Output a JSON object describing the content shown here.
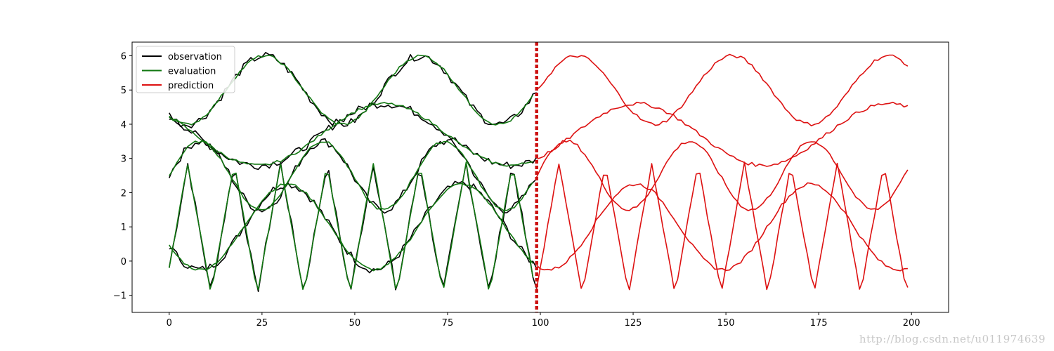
{
  "watermark": "http://blog.csdn.net/u011974639",
  "chart_data": {
    "type": "line",
    "title": "",
    "xlabel": "",
    "ylabel": "",
    "xlim": [
      -10,
      210
    ],
    "ylim": [
      -1.5,
      6.4
    ],
    "xticks": [
      0,
      25,
      50,
      75,
      100,
      125,
      150,
      175,
      200
    ],
    "yticks": [
      -1,
      0,
      1,
      2,
      3,
      4,
      5,
      6
    ],
    "grid": false,
    "legend_position": "top-left",
    "split_marker": {
      "x": 99,
      "color": "#cc1111",
      "style": "dotted"
    },
    "legend": [
      {
        "label": "observation",
        "color": "#000000"
      },
      {
        "label": "evaluation",
        "color": "#117711"
      },
      {
        "label": "prediction",
        "color": "#dd1111"
      }
    ],
    "series": [
      {
        "name": "observation",
        "color": "#000000",
        "x_range": [
          0,
          99
        ],
        "curves": [
          {
            "a": 1.0,
            "o": 0.0,
            "p": 12.5,
            "ph": 1.2
          },
          {
            "a": 1.25,
            "o": 1.0,
            "p": 47.0,
            "ph": 3.6
          },
          {
            "a": 1.0,
            "o": 2.5,
            "p": 33.0,
            "ph": 0.0
          },
          {
            "a": 0.9,
            "o": 3.7,
            "p": 68.0,
            "ph": 2.5
          },
          {
            "a": 1.0,
            "o": 5.0,
            "p": 42.0,
            "ph": 4.0
          }
        ],
        "noise": 0.12
      },
      {
        "name": "evaluation",
        "color": "#117711",
        "x_range": [
          0,
          98
        ],
        "curves": [
          {
            "a": 1.0,
            "o": 0.0,
            "p": 12.5,
            "ph": 1.2
          },
          {
            "a": 1.25,
            "o": 1.0,
            "p": 47.0,
            "ph": 3.6
          },
          {
            "a": 1.0,
            "o": 2.5,
            "p": 33.0,
            "ph": 0.0
          },
          {
            "a": 0.9,
            "o": 3.7,
            "p": 68.0,
            "ph": 2.5
          },
          {
            "a": 1.0,
            "o": 5.0,
            "p": 42.0,
            "ph": 4.0
          }
        ],
        "noise": 0.04
      },
      {
        "name": "prediction",
        "color": "#dd1111",
        "x_range": [
          99,
          199
        ],
        "curves": [
          {
            "a": 1.0,
            "o": 0.0,
            "p": 12.5,
            "ph": 1.2
          },
          {
            "a": 1.25,
            "o": 1.0,
            "p": 47.0,
            "ph": 3.6
          },
          {
            "a": 1.0,
            "o": 2.5,
            "p": 33.0,
            "ph": 0.0
          },
          {
            "a": 0.9,
            "o": 3.7,
            "p": 68.0,
            "ph": 2.5
          },
          {
            "a": 1.0,
            "o": 5.0,
            "p": 42.0,
            "ph": 4.0
          }
        ],
        "noise": 0.05
      }
    ]
  }
}
